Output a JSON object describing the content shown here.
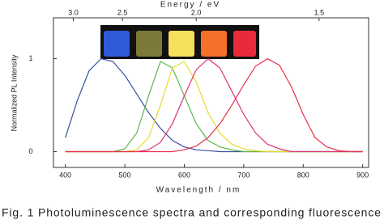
{
  "chart_data": {
    "type": "line",
    "xlabel": "Wavelength / nm",
    "ylabel": "Normalized PL Intensity",
    "x2label": "Energy / eV",
    "caption": "Fig. 1 Photoluminescence spectra and corresponding fluorescence",
    "x": [
      400,
      420,
      440,
      460,
      480,
      500,
      520,
      540,
      560,
      580,
      600,
      620,
      640,
      660,
      680,
      700,
      720,
      740,
      760,
      780,
      800,
      820,
      840,
      860,
      880,
      900
    ],
    "series": [
      {
        "name": "blue",
        "color": "#3a4fa0",
        "values": [
          0.15,
          0.55,
          0.87,
          1.0,
          0.97,
          0.82,
          0.62,
          0.42,
          0.25,
          0.12,
          0.05,
          0.02,
          0.01,
          0,
          0,
          0,
          0,
          0,
          0,
          0,
          0,
          0,
          0,
          0,
          0,
          0
        ]
      },
      {
        "name": "green",
        "color": "#5ab848",
        "values": [
          0,
          0,
          0,
          0,
          0,
          0.03,
          0.2,
          0.6,
          0.97,
          0.9,
          0.6,
          0.3,
          0.12,
          0.05,
          0.02,
          0,
          0,
          0,
          0,
          0,
          0,
          0,
          0,
          0,
          0,
          0
        ]
      },
      {
        "name": "yellow",
        "color": "#e6dc2a",
        "values": [
          0,
          0,
          0,
          0,
          0,
          0,
          0.02,
          0.15,
          0.5,
          0.9,
          0.97,
          0.75,
          0.42,
          0.2,
          0.08,
          0.03,
          0.01,
          0,
          0,
          0,
          0,
          0,
          0,
          0,
          0,
          0
        ]
      },
      {
        "name": "pink",
        "color": "#e0307a",
        "values": [
          0,
          0,
          0,
          0,
          0,
          0,
          0,
          0.02,
          0.1,
          0.3,
          0.6,
          0.88,
          1.0,
          0.9,
          0.65,
          0.4,
          0.2,
          0.08,
          0.03,
          0,
          0,
          0,
          0,
          0,
          0,
          0
        ]
      },
      {
        "name": "red",
        "color": "#e8304a",
        "values": [
          0,
          0,
          0,
          0,
          0,
          0,
          0,
          0,
          0,
          0,
          0.02,
          0.06,
          0.15,
          0.3,
          0.5,
          0.72,
          0.92,
          1.0,
          0.93,
          0.7,
          0.4,
          0.15,
          0.05,
          0.01,
          0,
          0
        ]
      }
    ],
    "xlim": [
      380,
      910
    ],
    "xticks": [
      400,
      500,
      600,
      700,
      800,
      900
    ],
    "ylim": [
      -0.17,
      1.44
    ],
    "yticks": [
      0,
      1
    ],
    "x2ticks": [
      {
        "value": 3,
        "label": "3.0"
      },
      2.5,
      {
        "value": 2,
        "label": "2.0"
      },
      1.5
    ],
    "x2_conversion": 1240
  }
}
